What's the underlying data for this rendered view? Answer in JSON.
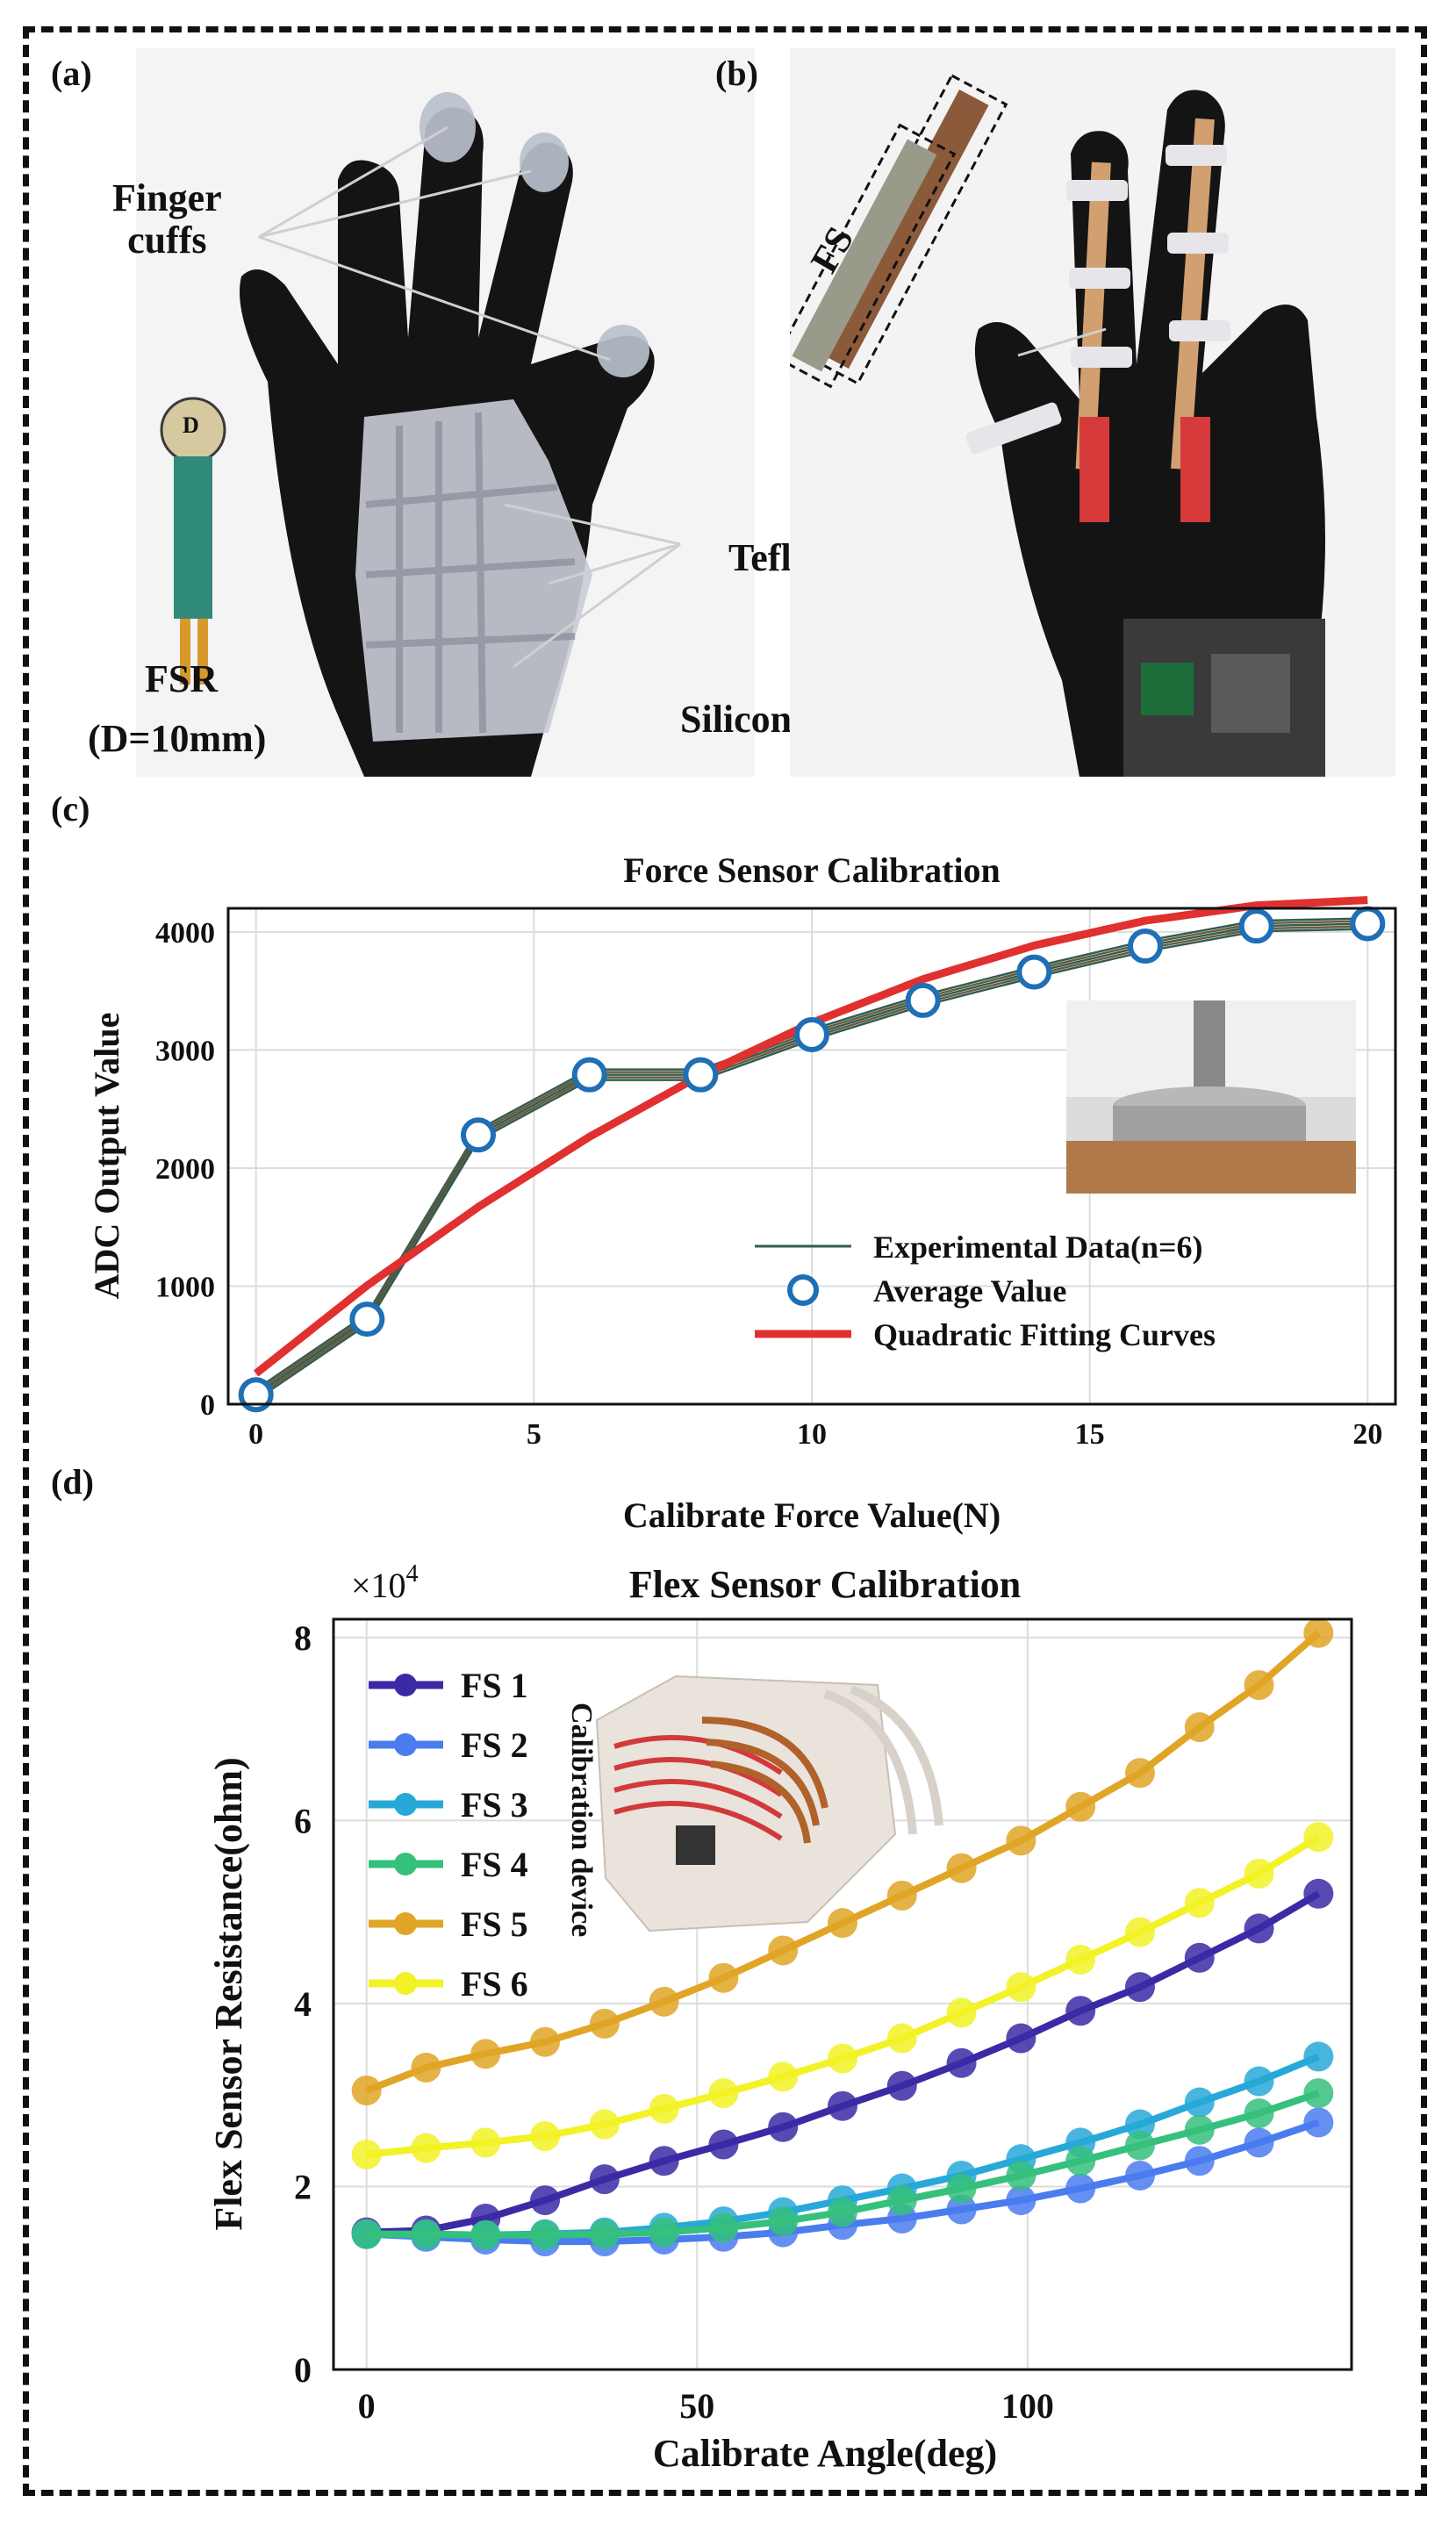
{
  "panels": {
    "a": {
      "label": "(a)",
      "annotations": {
        "finger_cuffs": "Finger\ncuffs",
        "teflon_tubes": "Teflon tubes",
        "fsr_name": "FSR",
        "fsr_diameter": "(D=10mm)",
        "fsr_d": "D",
        "palm_plate": "Silicone palm plate"
      }
    },
    "b": {
      "label": "(b)",
      "annotations": {
        "fs": "FS"
      }
    },
    "c": {
      "label": "(c)"
    },
    "d": {
      "label": "(d)",
      "inset_caption": "Calibration device"
    }
  },
  "colors": {
    "frame": "#111111",
    "glove": "#141414",
    "silicone": "#c9ccd6",
    "fs1": "#3b2aa6",
    "fs2": "#4a7cf0",
    "fs3": "#27a8d8",
    "fs4": "#35c07c",
    "fs5": "#e0a526",
    "fs6": "#f2f226",
    "exp_line": "#2f5d52",
    "avg_marker": "#1f6fb5",
    "fit": "#e03030"
  },
  "chart_data": [
    {
      "type": "line",
      "title": "Force Sensor Calibration",
      "xlabel": "Calibrate Force Value(N)",
      "ylabel": "ADC Output Value",
      "xlim": [
        -0.5,
        20.5
      ],
      "ylim": [
        0,
        4200
      ],
      "xticks": [
        0,
        5,
        10,
        15,
        20
      ],
      "yticks": [
        0,
        1000,
        2000,
        3000,
        4000
      ],
      "grid": true,
      "legend": "bottom-right",
      "x": [
        0,
        2,
        4,
        6,
        8,
        10,
        12,
        14,
        16,
        18,
        20
      ],
      "series": [
        {
          "name": "Experimental Data(n=6)",
          "values": [
            80,
            720,
            2280,
            2790,
            2790,
            3130,
            3420,
            3660,
            3880,
            4050,
            4070
          ]
        },
        {
          "name": "Average Value",
          "values": [
            80,
            720,
            2280,
            2790,
            2790,
            3130,
            3420,
            3660,
            3880,
            4050,
            4070
          ]
        },
        {
          "name": "Quadratic Fitting Curves",
          "values": [
            260,
            1005,
            1670,
            2265,
            2785,
            3230,
            3600,
            3885,
            4095,
            4225,
            4270
          ]
        }
      ]
    },
    {
      "type": "line",
      "title": "Flex Sensor Calibration",
      "xlabel": "Calibrate Angle(deg)",
      "ylabel": "Flex Sensor Resistance(ohm)",
      "yscale_label": "×10",
      "yscale_exp": "4",
      "xlim": [
        -5,
        149
      ],
      "ylim": [
        0,
        8.2
      ],
      "xticks": [
        0,
        50,
        100
      ],
      "yticks": [
        0,
        2,
        4,
        6,
        8
      ],
      "grid": true,
      "legend": "top-left",
      "x": [
        0,
        9,
        18,
        27,
        36,
        45,
        54,
        63,
        72,
        81,
        90,
        99,
        108,
        117,
        126,
        135,
        144
      ],
      "series": [
        {
          "name": "FS 1",
          "values": [
            1.5,
            1.52,
            1.65,
            1.85,
            2.08,
            2.28,
            2.46,
            2.65,
            2.88,
            3.1,
            3.35,
            3.62,
            3.92,
            4.18,
            4.5,
            4.82,
            5.2
          ]
        },
        {
          "name": "FS 2",
          "values": [
            1.48,
            1.45,
            1.42,
            1.4,
            1.4,
            1.42,
            1.45,
            1.5,
            1.58,
            1.65,
            1.75,
            1.85,
            1.98,
            2.12,
            2.28,
            2.48,
            2.7
          ]
        },
        {
          "name": "FS 3",
          "values": [
            1.48,
            1.47,
            1.47,
            1.48,
            1.5,
            1.55,
            1.62,
            1.72,
            1.85,
            1.98,
            2.12,
            2.3,
            2.48,
            2.68,
            2.92,
            3.15,
            3.42
          ]
        },
        {
          "name": "FS 4",
          "values": [
            1.48,
            1.48,
            1.47,
            1.47,
            1.48,
            1.5,
            1.55,
            1.62,
            1.72,
            1.85,
            1.98,
            2.12,
            2.28,
            2.45,
            2.62,
            2.8,
            3.02
          ]
        },
        {
          "name": "FS 5",
          "values": [
            3.05,
            3.3,
            3.45,
            3.58,
            3.78,
            4.02,
            4.28,
            4.58,
            4.88,
            5.18,
            5.48,
            5.78,
            6.15,
            6.52,
            7.02,
            7.48,
            8.05
          ]
        },
        {
          "name": "FS 6",
          "values": [
            2.35,
            2.42,
            2.48,
            2.55,
            2.68,
            2.85,
            3.02,
            3.2,
            3.4,
            3.62,
            3.9,
            4.18,
            4.48,
            4.78,
            5.1,
            5.42,
            5.82
          ]
        }
      ]
    }
  ]
}
